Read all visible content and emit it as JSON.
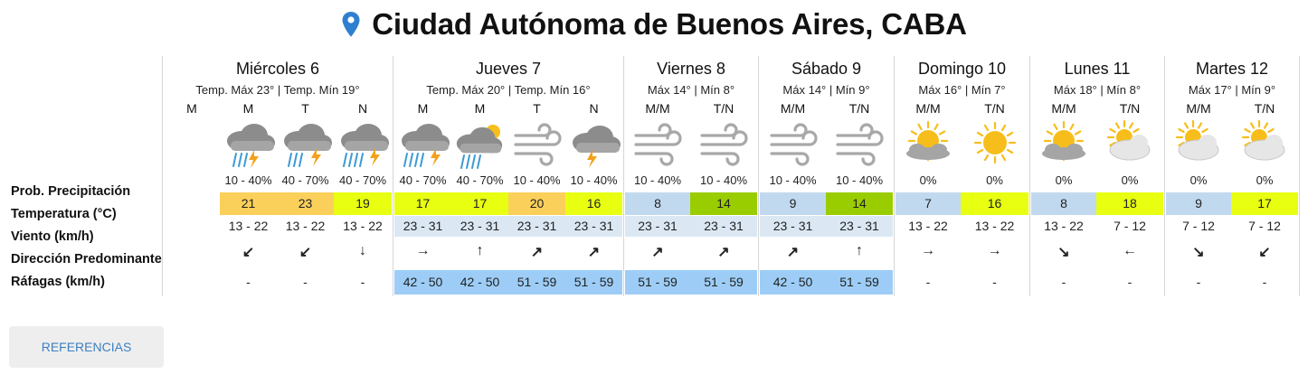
{
  "location": {
    "title": "Ciudad Autónoma de Buenos Aires, CABA",
    "icon": "map-pin-icon"
  },
  "row_labels": [
    "Prob. Precipitación",
    "Temperatura (°C)",
    "Viento (km/h)",
    "Dirección Predominante",
    "Ráfagas (km/h)"
  ],
  "colors": {
    "orange": "#fbd05a",
    "lime": "#e8ff12",
    "green": "#9acd00",
    "blue": "#c1d9ee",
    "wind_blue": "#dbe8f4",
    "gust_blue": "#9dcdf6",
    "accent": "#3d7fc1"
  },
  "days": [
    {
      "name": "Miércoles 6",
      "temps": "Temp. Máx 23° | Temp. Mín 19°",
      "columns": [
        {
          "period": "M",
          "icon": "none",
          "prob": "",
          "temp": "",
          "temp_color": "",
          "wind": "",
          "wind_bg": "",
          "dir": "",
          "gust": "",
          "gust_bg": ""
        },
        {
          "period": "M",
          "icon": "rain-storm-icon",
          "prob": "10 - 40%",
          "temp": "21",
          "temp_color": "orange",
          "wind": "13 - 22",
          "wind_bg": "",
          "dir": "↙",
          "gust": "-",
          "gust_bg": ""
        },
        {
          "period": "T",
          "icon": "storm-rain-icon",
          "prob": "40 - 70%",
          "temp": "23",
          "temp_color": "orange",
          "wind": "13 - 22",
          "wind_bg": "",
          "dir": "↙",
          "gust": "-",
          "gust_bg": ""
        },
        {
          "period": "N",
          "icon": "storm-heavy-rain-icon",
          "prob": "40 - 70%",
          "temp": "19",
          "temp_color": "lime",
          "wind": "13 - 22",
          "wind_bg": "",
          "dir": "↓",
          "gust": "-",
          "gust_bg": ""
        }
      ]
    },
    {
      "name": "Jueves 7",
      "temps": "Temp. Máx 20° | Temp. Mín 16°",
      "columns": [
        {
          "period": "M",
          "icon": "storm-heavy-rain-icon",
          "prob": "40 - 70%",
          "temp": "17",
          "temp_color": "lime",
          "wind": "23 - 31",
          "wind_bg": "wind_blue",
          "dir": "→",
          "gust": "42 - 50",
          "gust_bg": "gust_blue"
        },
        {
          "period": "M",
          "icon": "partly-cloudy-rain-icon",
          "prob": "40 - 70%",
          "temp": "17",
          "temp_color": "lime",
          "wind": "23 - 31",
          "wind_bg": "wind_blue",
          "dir": "↑",
          "gust": "42 - 50",
          "gust_bg": "gust_blue"
        },
        {
          "period": "T",
          "icon": "wind-icon",
          "prob": "10 - 40%",
          "temp": "20",
          "temp_color": "orange",
          "wind": "23 - 31",
          "wind_bg": "wind_blue",
          "dir": "↗",
          "gust": "51 - 59",
          "gust_bg": "gust_blue"
        },
        {
          "period": "N",
          "icon": "cloud-storm-icon",
          "prob": "10 - 40%",
          "temp": "16",
          "temp_color": "lime",
          "wind": "23 - 31",
          "wind_bg": "wind_blue",
          "dir": "↗",
          "gust": "51 - 59",
          "gust_bg": "gust_blue"
        }
      ]
    },
    {
      "name": "Viernes 8",
      "temps": "Máx 14° | Mín 8°",
      "columns": [
        {
          "period": "M/M",
          "icon": "wind-icon",
          "prob": "10 - 40%",
          "temp": "8",
          "temp_color": "blue",
          "wind": "23 - 31",
          "wind_bg": "wind_blue",
          "dir": "↗",
          "gust": "51 - 59",
          "gust_bg": "gust_blue"
        },
        {
          "period": "T/N",
          "icon": "wind-icon",
          "prob": "10 - 40%",
          "temp": "14",
          "temp_color": "green",
          "wind": "23 - 31",
          "wind_bg": "wind_blue",
          "dir": "↗",
          "gust": "51 - 59",
          "gust_bg": "gust_blue"
        }
      ]
    },
    {
      "name": "Sábado 9",
      "temps": "Máx 14° | Mín 9°",
      "columns": [
        {
          "period": "M/M",
          "icon": "wind-icon",
          "prob": "10 - 40%",
          "temp": "9",
          "temp_color": "blue",
          "wind": "23 - 31",
          "wind_bg": "wind_blue",
          "dir": "↗",
          "gust": "42 - 50",
          "gust_bg": "gust_blue"
        },
        {
          "period": "T/N",
          "icon": "wind-icon",
          "prob": "10 - 40%",
          "temp": "14",
          "temp_color": "green",
          "wind": "23 - 31",
          "wind_bg": "wind_blue",
          "dir": "↑",
          "gust": "51 - 59",
          "gust_bg": "gust_blue"
        }
      ]
    },
    {
      "name": "Domingo 10",
      "temps": "Máx 16° | Mín 7°",
      "columns": [
        {
          "period": "M/M",
          "icon": "sun-cloud-icon",
          "prob": "0%",
          "temp": "7",
          "temp_color": "blue",
          "wind": "13 - 22",
          "wind_bg": "",
          "dir": "→",
          "gust": "-",
          "gust_bg": ""
        },
        {
          "period": "T/N",
          "icon": "sun-icon",
          "prob": "0%",
          "temp": "16",
          "temp_color": "lime",
          "wind": "13 - 22",
          "wind_bg": "",
          "dir": "→",
          "gust": "-",
          "gust_bg": ""
        }
      ]
    },
    {
      "name": "Lunes 11",
      "temps": "Máx 18° | Mín 8°",
      "columns": [
        {
          "period": "M/M",
          "icon": "sun-cloud-icon",
          "prob": "0%",
          "temp": "8",
          "temp_color": "blue",
          "wind": "13 - 22",
          "wind_bg": "",
          "dir": "↘",
          "gust": "-",
          "gust_bg": ""
        },
        {
          "period": "T/N",
          "icon": "partly-cloudy-icon",
          "prob": "0%",
          "temp": "18",
          "temp_color": "lime",
          "wind": "7 - 12",
          "wind_bg": "",
          "dir": "←",
          "gust": "-",
          "gust_bg": ""
        }
      ]
    },
    {
      "name": "Martes 12",
      "temps": "Máx 17° | Mín 9°",
      "columns": [
        {
          "period": "M/M",
          "icon": "partly-cloudy-icon",
          "prob": "0%",
          "temp": "9",
          "temp_color": "blue",
          "wind": "7 - 12",
          "wind_bg": "",
          "dir": "↘",
          "gust": "-",
          "gust_bg": ""
        },
        {
          "period": "T/N",
          "icon": "partly-cloudy-icon",
          "prob": "0%",
          "temp": "17",
          "temp_color": "lime",
          "wind": "7 - 12",
          "wind_bg": "",
          "dir": "↙",
          "gust": "-",
          "gust_bg": ""
        }
      ]
    }
  ],
  "references_button": "REFERENCIAS"
}
